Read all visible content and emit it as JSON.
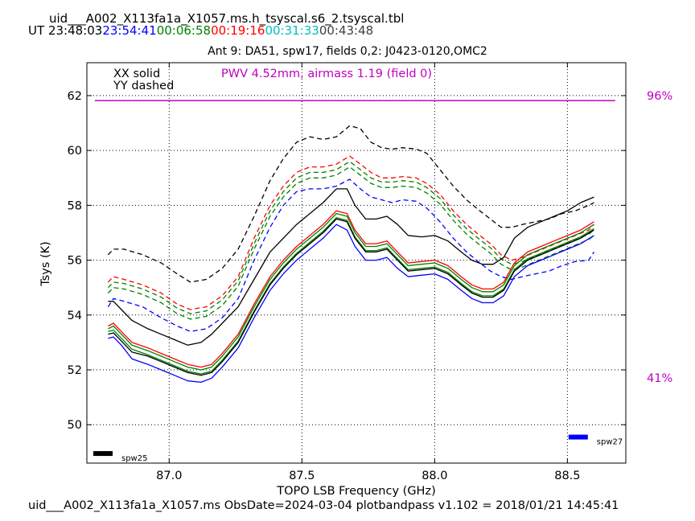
{
  "header": {
    "title": "uid___A002_X113fa1a_X1057.ms.h_tsyscal.s6_2.tsyscal.tbl",
    "ut_label": "UT",
    "ut_times": [
      {
        "text": "23:48:03",
        "color": "#000000"
      },
      {
        "text": "23:54:41",
        "color": "#0000ff"
      },
      {
        "text": "00:06:58",
        "color": "#008000"
      },
      {
        "text": "00:19:16",
        "color": "#ff0000"
      },
      {
        "text": "00:31:33",
        "color": "#00bfbf"
      },
      {
        "text": "00:43:48",
        "color": "#404040"
      }
    ],
    "subtitle": "Ant 9: DA51,  spw17,  fields 0,2: J0423-0120,OMC2"
  },
  "legend": {
    "xx": "XX solid",
    "yy": "YY dashed"
  },
  "annotations": {
    "pwv": "PWV 4.52mm, airmass 1.19 (field 0)",
    "pct_high": "96%",
    "pct_low": "41%",
    "spw_left": "spw25",
    "spw_right": "spw27",
    "pwv_color": "#bf00bf"
  },
  "footer": "uid___A002_X113fa1a_X1057.ms  ObsDate=2024-03-04   plotbandpass v1.102 = 2018/01/21 14:45:41",
  "chart_data": {
    "type": "line",
    "xlabel": "TOPO LSB Frequency (GHz)",
    "ylabel": "Tsys (K)",
    "xlim": [
      86.69,
      88.72
    ],
    "ylim": [
      48.6,
      63.2
    ],
    "xticks": [
      "87.0",
      "87.5",
      "88.0",
      "88.5"
    ],
    "xtick_values": [
      87.0,
      87.5,
      88.0,
      88.5
    ],
    "yticks": [
      "50",
      "52",
      "54",
      "56",
      "58",
      "60",
      "62"
    ],
    "ytick_values": [
      50,
      52,
      54,
      56,
      58,
      60,
      62
    ],
    "grid": true,
    "transmission_line": {
      "x": [
        86.72,
        88.68
      ],
      "y": 61.82,
      "color": "#bf00bf"
    },
    "series": [
      {
        "pol": "YY",
        "style": "dashed",
        "color": "#000000",
        "x": [
          86.77,
          86.79,
          86.83,
          86.9,
          86.97,
          87.03,
          87.08,
          87.14,
          87.2,
          87.26,
          87.32,
          87.38,
          87.43,
          87.48,
          87.53,
          87.58,
          87.63,
          87.68,
          87.72,
          87.76,
          87.8,
          87.84,
          87.88,
          87.93,
          87.97,
          88.02,
          88.07,
          88.12,
          88.17,
          88.21,
          88.25,
          88.29,
          88.33,
          88.38,
          88.43,
          88.48,
          88.53,
          88.58,
          88.6
        ],
        "y": [
          56.2,
          56.4,
          56.4,
          56.2,
          55.9,
          55.5,
          55.2,
          55.3,
          55.7,
          56.4,
          57.6,
          58.9,
          59.7,
          60.3,
          60.5,
          60.4,
          60.5,
          60.9,
          60.8,
          60.3,
          60.1,
          60.05,
          60.1,
          60.05,
          59.9,
          59.3,
          58.7,
          58.2,
          57.8,
          57.5,
          57.2,
          57.2,
          57.3,
          57.4,
          57.5,
          57.7,
          57.8,
          58.0,
          58.1
        ]
      },
      {
        "pol": "YY",
        "style": "dashed",
        "color": "#ff0000",
        "x": [
          86.77,
          86.79,
          86.83,
          86.9,
          86.97,
          87.03,
          87.08,
          87.14,
          87.2,
          87.26,
          87.32,
          87.38,
          87.43,
          87.48,
          87.53,
          87.58,
          87.63,
          87.68,
          87.72,
          87.76,
          87.8,
          87.84,
          87.88,
          87.93,
          87.97,
          88.02,
          88.07,
          88.12,
          88.17,
          88.21,
          88.25,
          88.29,
          88.33,
          88.38,
          88.43,
          88.48,
          88.53,
          88.58,
          88.6
        ],
        "y": [
          55.2,
          55.4,
          55.3,
          55.1,
          54.8,
          54.4,
          54.2,
          54.3,
          54.7,
          55.4,
          56.8,
          58.0,
          58.7,
          59.2,
          59.4,
          59.4,
          59.5,
          59.8,
          59.5,
          59.2,
          59.0,
          59.0,
          59.05,
          59.0,
          58.8,
          58.4,
          57.8,
          57.3,
          56.9,
          56.6,
          56.2,
          56.0,
          56.1,
          56.3,
          56.5,
          56.7,
          56.9,
          57.1,
          57.3
        ]
      },
      {
        "pol": "YY",
        "style": "dashed",
        "color": "#008000",
        "x": [
          86.77,
          86.79,
          86.83,
          86.9,
          86.97,
          87.03,
          87.08,
          87.14,
          87.2,
          87.26,
          87.32,
          87.38,
          87.43,
          87.48,
          87.53,
          87.58,
          87.63,
          87.68,
          87.72,
          87.76,
          87.8,
          87.84,
          87.88,
          87.93,
          87.97,
          88.02,
          88.07,
          88.12,
          88.17,
          88.21,
          88.25,
          88.29,
          88.33,
          88.38,
          88.43,
          88.48,
          88.53,
          88.58,
          88.6
        ],
        "y": [
          55.0,
          55.2,
          55.15,
          54.95,
          54.65,
          54.25,
          54.05,
          54.15,
          54.55,
          55.25,
          56.6,
          57.8,
          58.5,
          59.0,
          59.2,
          59.2,
          59.3,
          59.6,
          59.3,
          59.0,
          58.85,
          58.85,
          58.9,
          58.85,
          58.65,
          58.25,
          57.65,
          57.15,
          56.75,
          56.45,
          56.05,
          55.85,
          55.95,
          56.15,
          56.35,
          56.55,
          56.75,
          56.95,
          57.1
        ]
      },
      {
        "pol": "YY",
        "style": "dashed",
        "color": "#008000",
        "x": [
          86.77,
          86.79,
          86.83,
          86.9,
          86.97,
          87.03,
          87.08,
          87.14,
          87.2,
          87.26,
          87.32,
          87.38,
          87.43,
          87.48,
          87.53,
          87.58,
          87.63,
          87.68,
          87.72,
          87.76,
          87.8,
          87.84,
          87.88,
          87.93,
          87.97,
          88.02,
          88.07,
          88.12,
          88.17,
          88.21,
          88.25,
          88.29,
          88.33,
          88.38,
          88.43,
          88.48,
          88.53,
          88.58,
          88.6
        ],
        "y": [
          54.8,
          55.0,
          54.95,
          54.75,
          54.45,
          54.05,
          53.85,
          53.95,
          54.35,
          55.05,
          56.4,
          57.6,
          58.3,
          58.8,
          59.0,
          59.0,
          59.1,
          59.4,
          59.1,
          58.8,
          58.65,
          58.65,
          58.7,
          58.65,
          58.45,
          58.05,
          57.45,
          56.95,
          56.55,
          56.25,
          55.85,
          55.65,
          55.75,
          55.95,
          56.15,
          56.35,
          56.55,
          56.75,
          56.9
        ]
      },
      {
        "pol": "YY",
        "style": "dashed",
        "color": "#0000ff",
        "x": [
          86.77,
          86.79,
          86.83,
          86.9,
          86.97,
          87.03,
          87.08,
          87.14,
          87.2,
          87.26,
          87.32,
          87.38,
          87.43,
          87.48,
          87.53,
          87.58,
          87.63,
          87.68,
          87.72,
          87.76,
          87.8,
          87.84,
          87.88,
          87.93,
          87.97,
          88.02,
          88.07,
          88.12,
          88.17,
          88.21,
          88.25,
          88.29,
          88.33,
          88.38,
          88.43,
          88.48,
          88.53,
          88.58,
          88.6
        ],
        "y": [
          54.3,
          54.6,
          54.5,
          54.3,
          53.9,
          53.6,
          53.4,
          53.5,
          53.9,
          54.6,
          56.0,
          57.2,
          58.0,
          58.5,
          58.6,
          58.6,
          58.7,
          58.95,
          58.6,
          58.3,
          58.2,
          58.1,
          58.2,
          58.15,
          57.9,
          57.4,
          56.8,
          56.3,
          55.9,
          55.6,
          55.4,
          55.3,
          55.4,
          55.5,
          55.6,
          55.8,
          55.95,
          56.0,
          56.3
        ]
      },
      {
        "pol": "XX",
        "style": "solid",
        "color": "#000000",
        "x": [
          86.77,
          86.79,
          86.82,
          86.86,
          86.92,
          86.97,
          87.02,
          87.07,
          87.12,
          87.16,
          87.2,
          87.26,
          87.32,
          87.38,
          87.43,
          87.48,
          87.53,
          87.58,
          87.63,
          87.67,
          87.7,
          87.74,
          87.78,
          87.82,
          87.86,
          87.9,
          87.95,
          88.0,
          88.05,
          88.1,
          88.14,
          88.18,
          88.22,
          88.26,
          88.3,
          88.35,
          88.4,
          88.45,
          88.5,
          88.55,
          88.6
        ],
        "y": [
          54.5,
          54.5,
          54.2,
          53.8,
          53.5,
          53.3,
          53.1,
          52.9,
          53.0,
          53.3,
          53.7,
          54.3,
          55.3,
          56.3,
          56.8,
          57.3,
          57.7,
          58.1,
          58.6,
          58.6,
          58.0,
          57.5,
          57.5,
          57.6,
          57.3,
          56.9,
          56.85,
          56.9,
          56.7,
          56.3,
          56.0,
          55.85,
          55.85,
          56.1,
          56.8,
          57.2,
          57.4,
          57.6,
          57.8,
          58.1,
          58.3
        ]
      },
      {
        "pol": "XX",
        "style": "solid",
        "color": "#ff0000",
        "x": [
          86.77,
          86.79,
          86.82,
          86.86,
          86.92,
          86.97,
          87.02,
          87.07,
          87.12,
          87.16,
          87.2,
          87.26,
          87.32,
          87.38,
          87.43,
          87.48,
          87.53,
          87.58,
          87.63,
          87.67,
          87.7,
          87.74,
          87.78,
          87.82,
          87.86,
          87.9,
          87.95,
          88.0,
          88.05,
          88.1,
          88.14,
          88.18,
          88.22,
          88.26,
          88.3,
          88.35,
          88.4,
          88.45,
          88.5,
          88.55,
          88.6
        ],
        "y": [
          53.6,
          53.7,
          53.4,
          53.0,
          52.8,
          52.6,
          52.4,
          52.2,
          52.1,
          52.2,
          52.6,
          53.3,
          54.4,
          55.4,
          56.0,
          56.5,
          56.9,
          57.3,
          57.8,
          57.7,
          57.1,
          56.6,
          56.6,
          56.7,
          56.3,
          55.9,
          55.95,
          56.0,
          55.8,
          55.4,
          55.1,
          54.95,
          54.95,
          55.2,
          55.9,
          56.3,
          56.5,
          56.7,
          56.9,
          57.1,
          57.4
        ]
      },
      {
        "pol": "XX",
        "style": "solid",
        "color": "#008000",
        "x": [
          86.77,
          86.79,
          86.82,
          86.86,
          86.92,
          86.97,
          87.02,
          87.07,
          87.12,
          87.16,
          87.2,
          87.26,
          87.32,
          87.38,
          87.43,
          87.48,
          87.53,
          87.58,
          87.63,
          87.67,
          87.7,
          87.74,
          87.78,
          87.82,
          87.86,
          87.9,
          87.95,
          88.0,
          88.05,
          88.1,
          88.14,
          88.18,
          88.22,
          88.26,
          88.3,
          88.35,
          88.4,
          88.45,
          88.5,
          88.55,
          88.6
        ],
        "y": [
          53.5,
          53.6,
          53.3,
          52.9,
          52.7,
          52.5,
          52.3,
          52.1,
          52.0,
          52.1,
          52.5,
          53.2,
          54.3,
          55.3,
          55.9,
          56.4,
          56.8,
          57.2,
          57.7,
          57.6,
          57.0,
          56.5,
          56.5,
          56.6,
          56.2,
          55.8,
          55.85,
          55.9,
          55.7,
          55.3,
          55.0,
          54.85,
          54.85,
          55.1,
          55.8,
          56.2,
          56.4,
          56.6,
          56.8,
          57.0,
          57.3
        ]
      },
      {
        "pol": "XX",
        "style": "solid",
        "color": "#008000",
        "x": [
          86.77,
          86.79,
          86.82,
          86.86,
          86.92,
          86.97,
          87.02,
          87.07,
          87.12,
          87.16,
          87.2,
          87.26,
          87.32,
          87.38,
          87.43,
          87.48,
          87.53,
          87.58,
          87.63,
          87.67,
          87.7,
          87.74,
          87.78,
          87.82,
          87.86,
          87.9,
          87.95,
          88.0,
          88.05,
          88.1,
          88.14,
          88.18,
          88.22,
          88.26,
          88.3,
          88.35,
          88.4,
          88.45,
          88.5,
          88.55,
          88.6
        ],
        "y": [
          53.4,
          53.45,
          53.15,
          52.75,
          52.55,
          52.35,
          52.15,
          51.95,
          51.85,
          51.95,
          52.35,
          53.05,
          54.15,
          55.15,
          55.75,
          56.25,
          56.65,
          57.05,
          57.55,
          57.45,
          56.85,
          56.35,
          56.35,
          56.45,
          56.05,
          55.65,
          55.7,
          55.75,
          55.55,
          55.15,
          54.85,
          54.7,
          54.7,
          54.95,
          55.65,
          56.05,
          56.25,
          56.45,
          56.65,
          56.85,
          57.15
        ]
      },
      {
        "pol": "XX",
        "style": "solid",
        "color": "#000000",
        "x": [
          86.77,
          86.79,
          86.82,
          86.86,
          86.92,
          86.97,
          87.02,
          87.07,
          87.12,
          87.16,
          87.2,
          87.26,
          87.32,
          87.38,
          87.43,
          87.48,
          87.53,
          87.58,
          87.63,
          87.67,
          87.7,
          87.74,
          87.78,
          87.82,
          87.86,
          87.9,
          87.95,
          88.0,
          88.05,
          88.1,
          88.14,
          88.18,
          88.22,
          88.26,
          88.3,
          88.35,
          88.4,
          88.45,
          88.5,
          88.55,
          88.6
        ],
        "y": [
          53.3,
          53.35,
          53.05,
          52.65,
          52.5,
          52.3,
          52.1,
          51.9,
          51.8,
          51.9,
          52.3,
          53.0,
          54.1,
          55.1,
          55.7,
          56.2,
          56.6,
          57.0,
          57.5,
          57.4,
          56.8,
          56.3,
          56.3,
          56.4,
          56.0,
          55.6,
          55.65,
          55.7,
          55.5,
          55.1,
          54.8,
          54.65,
          54.65,
          54.9,
          55.6,
          56.0,
          56.2,
          56.4,
          56.6,
          56.8,
          57.1
        ]
      },
      {
        "pol": "XX",
        "style": "solid",
        "color": "#0000ff",
        "x": [
          86.77,
          86.79,
          86.82,
          86.86,
          86.92,
          86.97,
          87.02,
          87.07,
          87.12,
          87.16,
          87.2,
          87.26,
          87.32,
          87.38,
          87.43,
          87.48,
          87.53,
          87.58,
          87.63,
          87.67,
          87.7,
          87.74,
          87.78,
          87.82,
          87.86,
          87.9,
          87.95,
          88.0,
          88.05,
          88.1,
          88.14,
          88.18,
          88.22,
          88.26,
          88.3,
          88.35,
          88.4,
          88.45,
          88.5,
          88.55,
          88.6
        ],
        "y": [
          53.15,
          53.2,
          52.9,
          52.4,
          52.2,
          52.0,
          51.8,
          51.6,
          51.55,
          51.7,
          52.1,
          52.8,
          53.9,
          54.9,
          55.5,
          56.0,
          56.4,
          56.8,
          57.3,
          57.1,
          56.5,
          56.0,
          56.0,
          56.1,
          55.7,
          55.4,
          55.45,
          55.5,
          55.3,
          54.9,
          54.6,
          54.45,
          54.45,
          54.7,
          55.4,
          55.8,
          56.0,
          56.2,
          56.4,
          56.6,
          56.9
        ]
      }
    ],
    "spw_markers": [
      {
        "label": "spw25",
        "color": "#000000",
        "x": 86.79,
        "y": 48.95
      },
      {
        "label": "spw27",
        "color": "#0000ff",
        "x": 88.58,
        "y": 49.55
      }
    ]
  }
}
